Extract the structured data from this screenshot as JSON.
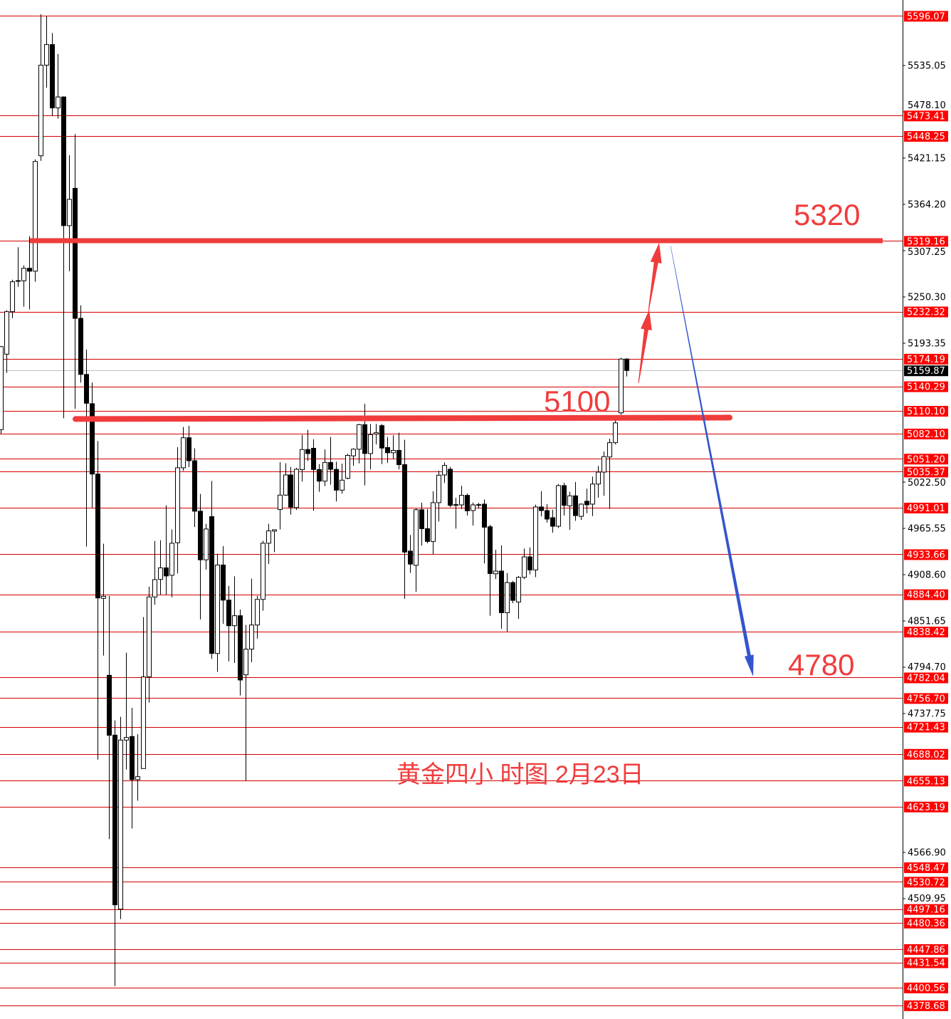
{
  "chart_data": {
    "type": "candlestick",
    "title": "黄金四小 时图 2月23日",
    "ylim": [
      4365,
      5612
    ],
    "grid": false,
    "colors": {
      "up_body": "#ffffff",
      "down_body": "#000000",
      "candle_outline": "#000000",
      "level_line": "#d40000",
      "level_label_bg": "#ff0000",
      "current_price_bg": "#000000",
      "annotation": "#f03c3c",
      "bullish_arrow": "#f03c3c",
      "bearish_arrow": "#3355cc"
    },
    "axis_ticks": [
      "5535.05",
      "5478.10",
      "5421.15",
      "5364.20",
      "5307.25",
      "5250.30",
      "5193.35",
      "5022.50",
      "4965.55",
      "4908.60",
      "4851.65",
      "4794.70",
      "4737.75",
      "4566.90",
      "4509.95"
    ],
    "level_labels": [
      "5596.07",
      "5473.41",
      "5448.25",
      "5319.16",
      "5232.32",
      "5174.19",
      "5140.29",
      "5110.10",
      "5082.10",
      "5051.20",
      "5035.37",
      "4991.01",
      "4933.66",
      "4884.40",
      "4838.42",
      "4782.04",
      "4756.70",
      "4721.43",
      "4688.02",
      "4655.13",
      "4623.19",
      "4548.47",
      "4530.72",
      "4497.16",
      "4480.36",
      "4447.86",
      "4431.54",
      "4400.56",
      "4378.68"
    ],
    "current_price": "5159.87",
    "key_levels": [
      {
        "label": "5320",
        "price": 5319.5
      },
      {
        "label": "5100",
        "price": 5101
      }
    ],
    "target_down": {
      "label": "4780",
      "price": 4780
    },
    "projection": {
      "up_targets": [
        5232,
        5320
      ],
      "down_target": 4780
    },
    "candles": [
      [
        5087.1,
        5190,
        5081.8,
        5189.2
      ],
      [
        5179.9,
        5234,
        5157,
        5232.2
      ],
      [
        5232.2,
        5271.6,
        5224.3,
        5269
      ],
      [
        5270,
        5311.4,
        5262.8,
        5270.4
      ],
      [
        5270.2,
        5289.2,
        5238.3,
        5285.6
      ],
      [
        5285.6,
        5325,
        5235,
        5282
      ],
      [
        5282,
        5419.5,
        5269,
        5417
      ],
      [
        5424,
        5598,
        5417.8,
        5535.5
      ],
      [
        5535.5,
        5595.4,
        5507.8,
        5560.8
      ],
      [
        5560.8,
        5575,
        5473,
        5482.9
      ],
      [
        5482.9,
        5549.3,
        5469.7,
        5496.4
      ],
      [
        5496.4,
        5497,
        5101,
        5338.1
      ],
      [
        5338,
        5424.7,
        5282,
        5370.4
      ],
      [
        5384,
        5450.7,
        5112.7,
        5224
      ],
      [
        5224,
        5240,
        5144.9,
        5155
      ],
      [
        5155,
        5185.6,
        4943,
        5119.5
      ],
      [
        5119,
        5145,
        4991,
        5032.4
      ],
      [
        5032.4,
        5073,
        4681.2,
        4880
      ],
      [
        4879.5,
        4946.7,
        4809.1,
        4882
      ],
      [
        4784.8,
        4882.5,
        4583.3,
        4711
      ],
      [
        4711.2,
        4729.3,
        4402.4,
        4502.4
      ],
      [
        4497.1,
        4733.7,
        4484.9,
        4705.1
      ],
      [
        4705.1,
        4812.6,
        4668.9,
        4708.3
      ],
      [
        4709.5,
        4744.8,
        4596.4,
        4656.4
      ],
      [
        4656.4,
        4712.4,
        4630.6,
        4660.1
      ],
      [
        4670.1,
        4856.4,
        4670.1,
        4782.8
      ],
      [
        4782.8,
        4893.7,
        4751.2,
        4881.2
      ],
      [
        4881.2,
        4950,
        4871.6,
        4902.5
      ],
      [
        4902.8,
        4951,
        4884,
        4917
      ],
      [
        4917,
        4993.9,
        4884,
        4907
      ],
      [
        4907.9,
        4964.3,
        4880.8,
        4947.3
      ],
      [
        4947.9,
        5065.5,
        4910,
        5040.1
      ],
      [
        5040.1,
        5090.3,
        5036.3,
        5077.1
      ],
      [
        5077.1,
        5091.7,
        5041,
        5048.8
      ],
      [
        5048.8,
        5064,
        4967.2,
        4986.7
      ],
      [
        4986.7,
        5008,
        4853.4,
        4926.9
      ],
      [
        4926.9,
        4971.2,
        4914.7,
        4964.8
      ],
      [
        4980,
        5023.8,
        4805,
        4811.7
      ],
      [
        4811.7,
        4934.2,
        4789,
        4920.5
      ],
      [
        4920.5,
        4943.8,
        4848.2,
        4877.3
      ],
      [
        4877.3,
        4894.8,
        4802,
        4845.8
      ],
      [
        4845.8,
        4906.5,
        4800,
        4858.1
      ],
      [
        4858.1,
        4865.7,
        4760,
        4779
      ],
      [
        4785.4,
        4846.7,
        4655,
        4817
      ],
      [
        4817,
        4903.6,
        4800.9,
        4846.7
      ],
      [
        4846.7,
        4882.6,
        4830,
        4878.2
      ],
      [
        4878.2,
        4950.3,
        4864.3,
        4947.3
      ],
      [
        4947.3,
        4971.2,
        4921.7,
        4962.5
      ],
      [
        4962.2,
        4963.9,
        4936.3,
        4963.9
      ],
      [
        4988.8,
        5047.1,
        4964.3,
        5006.5
      ],
      [
        5006.5,
        5045.6,
        5005.6,
        5031.3
      ],
      [
        5031.3,
        5041.3,
        4982.4,
        4991.7
      ],
      [
        4991.1,
        5040.1,
        4988.2,
        5038.3
      ],
      [
        5037.8,
        5080.6,
        5023.2,
        5062.6
      ],
      [
        5062.6,
        5086.8,
        5048.8,
        5057.6
      ],
      [
        5064.1,
        5075.2,
        4987.3,
        5038
      ],
      [
        5038,
        5044.6,
        5010.6,
        5023.7
      ],
      [
        5023.7,
        5062.7,
        5017.6,
        5046.7
      ],
      [
        5046.7,
        5078.1,
        5019.3,
        5038.2
      ],
      [
        5038.2,
        5047.6,
        4998.7,
        5012.6
      ],
      [
        5012.6,
        5045.2,
        5008.3,
        5024.9
      ],
      [
        5027.2,
        5057.2,
        5026,
        5055.4
      ],
      [
        5054.8,
        5064.1,
        5042.6,
        5063
      ],
      [
        5063,
        5094.1,
        5045.5,
        5093.2
      ],
      [
        5093.2,
        5118.8,
        5018.5,
        5057.7
      ],
      [
        5057.7,
        5094,
        5038.2,
        5081
      ],
      [
        5081.6,
        5094,
        5068.8,
        5083.3
      ],
      [
        5092,
        5094,
        5044.6,
        5064.4
      ],
      [
        5065,
        5078.1,
        5046.1,
        5058.6
      ],
      [
        5058.6,
        5080.1,
        5051,
        5061.5
      ],
      [
        5061.5,
        5083.3,
        5038.2,
        5044
      ],
      [
        5044,
        5074.6,
        4878.8,
        4936.4
      ],
      [
        4937.6,
        4957.4,
        4910.8,
        4921.6
      ],
      [
        4920.1,
        4990,
        4887.6,
        4988.5
      ],
      [
        4988.5,
        4997.2,
        4944.3,
        4965.2
      ],
      [
        4965.2,
        4989.4,
        4947.2,
        4949.5
      ],
      [
        4949.5,
        5011.2,
        4934,
        4997.2
      ],
      [
        4997.2,
        5036.5,
        4974,
        5031
      ],
      [
        5031.3,
        5046.7,
        5021.4,
        5043
      ],
      [
        5038.3,
        5041.3,
        4991.6,
        4993.9
      ],
      [
        4994.5,
        5003.3,
        4965.3,
        4994.8
      ],
      [
        4994.5,
        5017.9,
        4989.5,
        5006.2
      ],
      [
        5006.2,
        5008.5,
        4981.3,
        4987.2
      ],
      [
        4987.5,
        4997.4,
        4969.1,
        4994.5
      ],
      [
        4994.5,
        4997,
        4990,
        4994.8
      ],
      [
        4995.4,
        5001.2,
        4922.3,
        4967
      ],
      [
        4967.6,
        4969.9,
        4858,
        4910
      ],
      [
        4909.7,
        4939.2,
        4903.3,
        4913
      ],
      [
        4913,
        4944.8,
        4841.9,
        4861.8
      ],
      [
        4861.8,
        4910.6,
        4838.6,
        4898.9
      ],
      [
        4898.9,
        4901,
        4873.5,
        4877
      ],
      [
        4875,
        4907,
        4854.2,
        4905.3
      ],
      [
        4905.3,
        4940.7,
        4903,
        4930.5
      ],
      [
        4930.5,
        4942.2,
        4909,
        4914.4
      ],
      [
        4914.4,
        4994.8,
        4905.6,
        4991.9
      ],
      [
        4991.9,
        5011.4,
        4980.2,
        4987.5
      ],
      [
        4987.5,
        4995.4,
        4972.6,
        4977
      ],
      [
        4978.7,
        4988.6,
        4960.3,
        4968.2
      ],
      [
        4968.2,
        5020.2,
        4966,
        5018.2
      ],
      [
        5018.2,
        5021.7,
        4981.3,
        4993.9
      ],
      [
        4993.3,
        5010.6,
        4963.8,
        5005.6
      ],
      [
        5005.6,
        5022.6,
        4974.9,
        4981.3
      ],
      [
        4980.4,
        4996.2,
        4976,
        4995.4
      ],
      [
        4999,
        5014.3,
        4984.3,
        4994.6
      ],
      [
        4995.4,
        5029.2,
        4980.7,
        5020.1
      ],
      [
        5020.1,
        5042.5,
        5003.4,
        5034.8
      ],
      [
        5034.8,
        5060.1,
        5005.7,
        5053.9
      ],
      [
        5053.4,
        5076,
        4989.6,
        5071
      ],
      [
        5071,
        5099.5,
        5068.9,
        5095.4
      ],
      [
        5107.7,
        5175.4,
        5105.4,
        5173.9
      ],
      [
        5173.9,
        5175,
        5152.4,
        5159.87
      ]
    ]
  },
  "annotations": {
    "label_5320": "5320",
    "label_5100": "5100",
    "label_4780": "4780",
    "title": "黄金四小 时图 2月23日"
  }
}
